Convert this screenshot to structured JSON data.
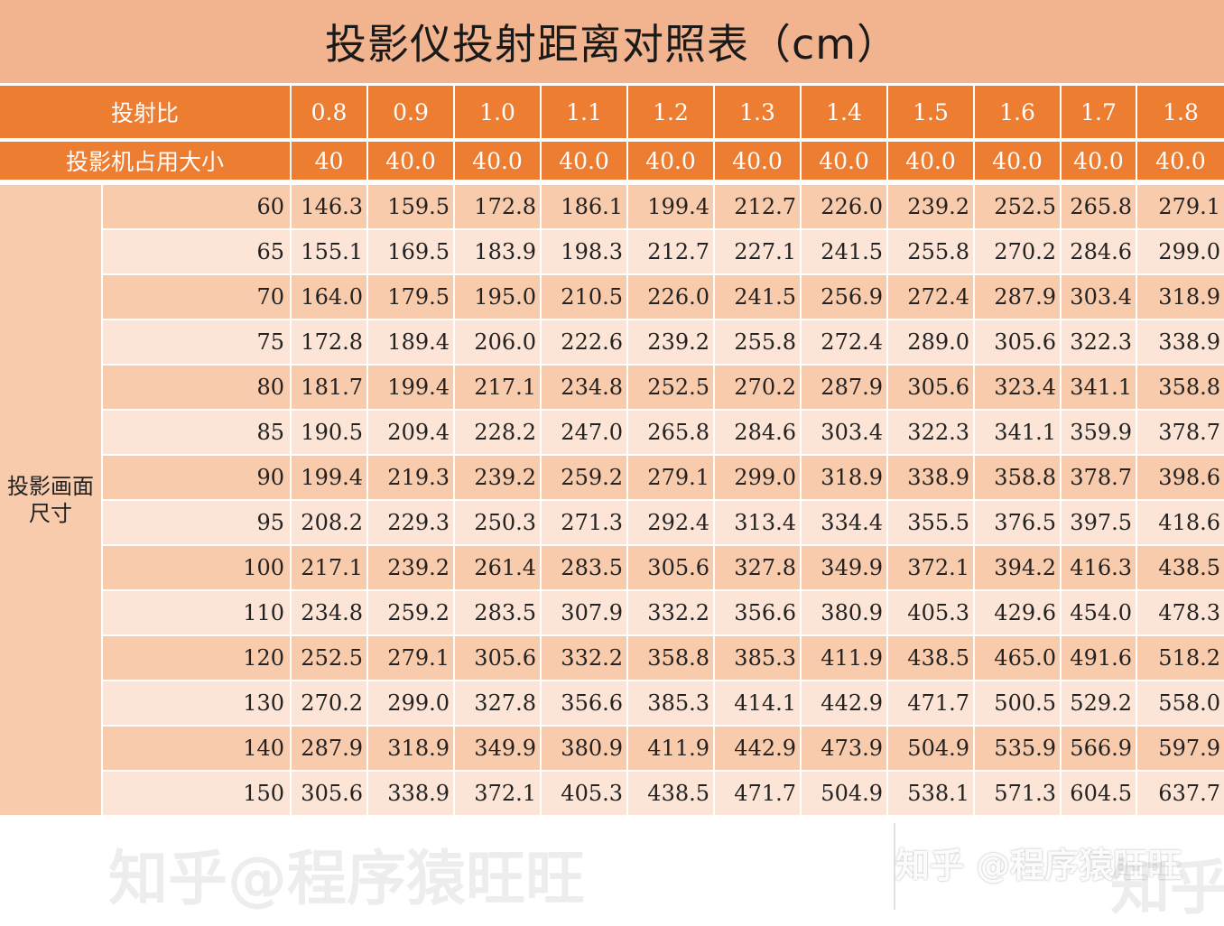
{
  "title": "投影仪投射距离对照表（cm）",
  "header": {
    "ratio_label": "投射比",
    "ratios": [
      "0.8",
      "0.9",
      "1.0",
      "1.1",
      "1.2",
      "1.3",
      "1.4",
      "1.5",
      "1.6",
      "1.7",
      "1.8"
    ],
    "occupy_label": "投影机占用大小",
    "occupy": [
      "40",
      "40.0",
      "40.0",
      "40.0",
      "40.0",
      "40.0",
      "40.0",
      "40.0",
      "40.0",
      "40.0",
      "40.0"
    ]
  },
  "side_label": "投影画面尺寸",
  "rows": [
    {
      "size": "60",
      "values": [
        "146.3",
        "159.5",
        "172.8",
        "186.1",
        "199.4",
        "212.7",
        "226.0",
        "239.2",
        "252.5",
        "265.8",
        "279.1"
      ]
    },
    {
      "size": "65",
      "values": [
        "155.1",
        "169.5",
        "183.9",
        "198.3",
        "212.7",
        "227.1",
        "241.5",
        "255.8",
        "270.2",
        "284.6",
        "299.0"
      ]
    },
    {
      "size": "70",
      "values": [
        "164.0",
        "179.5",
        "195.0",
        "210.5",
        "226.0",
        "241.5",
        "256.9",
        "272.4",
        "287.9",
        "303.4",
        "318.9"
      ]
    },
    {
      "size": "75",
      "values": [
        "172.8",
        "189.4",
        "206.0",
        "222.6",
        "239.2",
        "255.8",
        "272.4",
        "289.0",
        "305.6",
        "322.3",
        "338.9"
      ]
    },
    {
      "size": "80",
      "values": [
        "181.7",
        "199.4",
        "217.1",
        "234.8",
        "252.5",
        "270.2",
        "287.9",
        "305.6",
        "323.4",
        "341.1",
        "358.8"
      ]
    },
    {
      "size": "85",
      "values": [
        "190.5",
        "209.4",
        "228.2",
        "247.0",
        "265.8",
        "284.6",
        "303.4",
        "322.3",
        "341.1",
        "359.9",
        "378.7"
      ]
    },
    {
      "size": "90",
      "values": [
        "199.4",
        "219.3",
        "239.2",
        "259.2",
        "279.1",
        "299.0",
        "318.9",
        "338.9",
        "358.8",
        "378.7",
        "398.6"
      ]
    },
    {
      "size": "95",
      "values": [
        "208.2",
        "229.3",
        "250.3",
        "271.3",
        "292.4",
        "313.4",
        "334.4",
        "355.5",
        "376.5",
        "397.5",
        "418.6"
      ]
    },
    {
      "size": "100",
      "values": [
        "217.1",
        "239.2",
        "261.4",
        "283.5",
        "305.6",
        "327.8",
        "349.9",
        "372.1",
        "394.2",
        "416.3",
        "438.5"
      ]
    },
    {
      "size": "110",
      "values": [
        "234.8",
        "259.2",
        "283.5",
        "307.9",
        "332.2",
        "356.6",
        "380.9",
        "405.3",
        "429.6",
        "454.0",
        "478.3"
      ]
    },
    {
      "size": "120",
      "values": [
        "252.5",
        "279.1",
        "305.6",
        "332.2",
        "358.8",
        "385.3",
        "411.9",
        "438.5",
        "465.0",
        "491.6",
        "518.2"
      ]
    },
    {
      "size": "130",
      "values": [
        "270.2",
        "299.0",
        "327.8",
        "356.6",
        "385.3",
        "414.1",
        "442.9",
        "471.7",
        "500.5",
        "529.2",
        "558.0"
      ]
    },
    {
      "size": "140",
      "values": [
        "287.9",
        "318.9",
        "349.9",
        "380.9",
        "411.9",
        "442.9",
        "473.9",
        "504.9",
        "535.9",
        "566.9",
        "597.9"
      ]
    },
    {
      "size": "150",
      "values": [
        "305.6",
        "338.9",
        "372.1",
        "405.3",
        "438.5",
        "471.7",
        "504.9",
        "538.1",
        "571.3",
        "604.5",
        "637.7"
      ]
    }
  ],
  "watermarks": [
    "知乎@程序猿旺旺",
    "知乎 @程序猿旺旺",
    "知乎"
  ],
  "colors": {
    "title_bg": "#f2b48f",
    "header_bg": "#ed7d31",
    "row_dark": "#f8cbad",
    "row_light": "#fce4d6"
  }
}
